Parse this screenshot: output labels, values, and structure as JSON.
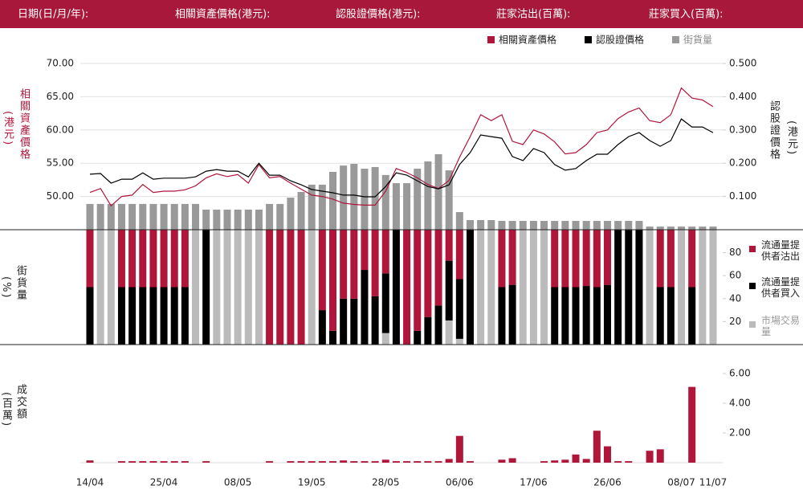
{
  "header": {
    "labels": [
      "日期(日/月/年):",
      "相關資產價格(港元):",
      "認股證價格(港元):",
      "莊家沽出(百萬):",
      "莊家買入(百萬):"
    ]
  },
  "chart_data": [
    {
      "type": "line",
      "ylabel": "相關資產價格",
      "yunit": "(港元)",
      "y2label": "認股證價格",
      "y2unit": "(港元)",
      "ylim": [
        45,
        70
      ],
      "yticks": [
        {
          "value": 50,
          "label": "50.00"
        },
        {
          "value": 55,
          "label": "55.00"
        },
        {
          "value": 60,
          "label": "60.00"
        },
        {
          "value": 65,
          "label": "65.00"
        },
        {
          "value": 70,
          "label": "70.00"
        }
      ],
      "y2lim": [
        0,
        0.5
      ],
      "y2ticks": [
        {
          "value": 0.1,
          "label": "0.100"
        },
        {
          "value": 0.2,
          "label": "0.200"
        },
        {
          "value": 0.3,
          "label": "0.300"
        },
        {
          "value": 0.4,
          "label": "0.400"
        },
        {
          "value": 0.5,
          "label": "0.500"
        }
      ],
      "y3lim": [
        0,
        100
      ],
      "grid": true,
      "legend": "top-right",
      "series": [
        {
          "name": "相關資產價格",
          "color": "#b0153a",
          "axis": "y",
          "values": [
            50.6,
            51.2,
            48.6,
            50.0,
            50.2,
            51.8,
            50.6,
            50.8,
            50.8,
            51.0,
            51.6,
            52.8,
            53.4,
            53.0,
            53.3,
            52.0,
            54.8,
            52.8,
            53.0,
            52.0,
            51.1,
            50.2,
            50.0,
            49.6,
            49.0,
            48.8,
            48.7,
            48.7,
            50.8,
            54.2,
            53.6,
            52.8,
            51.8,
            51.2,
            52.4,
            55.9,
            59.0,
            62.3,
            61.4,
            62.3,
            58.3,
            57.8,
            60.0,
            59.4,
            58.2,
            56.4,
            56.6,
            57.8,
            59.6,
            60.0,
            61.7,
            62.7,
            63.3,
            61.4,
            61.1,
            62.3,
            66.3,
            64.8,
            64.5,
            63.5
          ]
        },
        {
          "name": "認股證價格",
          "color": "#000000",
          "axis": "y2",
          "values": [
            0.167,
            0.169,
            0.14,
            0.152,
            0.152,
            0.171,
            0.152,
            0.155,
            0.155,
            0.155,
            0.159,
            0.176,
            0.181,
            0.176,
            0.176,
            0.159,
            0.2,
            0.164,
            0.164,
            0.147,
            0.135,
            0.121,
            0.116,
            0.111,
            0.104,
            0.104,
            0.099,
            0.099,
            0.13,
            0.171,
            0.164,
            0.147,
            0.13,
            0.123,
            0.135,
            0.196,
            0.232,
            0.285,
            0.28,
            0.275,
            0.22,
            0.208,
            0.244,
            0.232,
            0.196,
            0.179,
            0.184,
            0.208,
            0.227,
            0.227,
            0.256,
            0.28,
            0.292,
            0.268,
            0.251,
            0.268,
            0.333,
            0.309,
            0.309,
            0.292
          ]
        },
        {
          "name": "街貨量",
          "color": "#999999",
          "axis": "y3",
          "type": "bar",
          "values": [
            15.5,
            15.5,
            15.5,
            15.5,
            15.5,
            15.5,
            15.5,
            15.5,
            15.5,
            15.5,
            15.5,
            12.1,
            12.1,
            12.1,
            12.1,
            12.1,
            12.1,
            15.5,
            15.5,
            19.3,
            22.7,
            27.1,
            27.1,
            34.8,
            38.6,
            39.6,
            36.7,
            37.7,
            32.9,
            28.0,
            28.0,
            36.7,
            41.1,
            45.4,
            35.7,
            10.6,
            5.8,
            5.8,
            5.8,
            5.3,
            5.3,
            5.3,
            5.3,
            5.3,
            5.3,
            5.3,
            5.3,
            5.3,
            5.3,
            5.3,
            5.3,
            5.3,
            5.3,
            1.9,
            1.9,
            1.9,
            1.9,
            1.9,
            1.9,
            1.9
          ]
        }
      ]
    },
    {
      "type": "bar",
      "stacked": true,
      "ylabel": "街貨量",
      "yunit": "(%)",
      "ylim": [
        0,
        100
      ],
      "yticks": [
        20,
        40,
        60,
        80
      ],
      "legend": "right",
      "series": [
        {
          "name": "市場交易量",
          "color": "#bbbbbb",
          "values": [
            0,
            100,
            100,
            0,
            0,
            0,
            0,
            0,
            0,
            0,
            100,
            0,
            100,
            100,
            100,
            100,
            100,
            0,
            0,
            0,
            0,
            100,
            0,
            0,
            0,
            0,
            0,
            0,
            10,
            0,
            0,
            0,
            0,
            0,
            21,
            5,
            0,
            100,
            100,
            0,
            0,
            100,
            100,
            100,
            0,
            0,
            0,
            0,
            0,
            0,
            0,
            0,
            0,
            100,
            0,
            0,
            100,
            0,
            100,
            100
          ]
        },
        {
          "name": "流通量提供者買入",
          "color": "#000000",
          "values": [
            50,
            0,
            0,
            50,
            50,
            50,
            50,
            50,
            50,
            50,
            0,
            100,
            0,
            0,
            0,
            0,
            0,
            0,
            0,
            0,
            0,
            0,
            30,
            12,
            40,
            40,
            65,
            42,
            52,
            100,
            0,
            12,
            24,
            34,
            52,
            52,
            100,
            0,
            0,
            50,
            52,
            0,
            0,
            0,
            50,
            50,
            50,
            51,
            50,
            52,
            100,
            100,
            100,
            0,
            50,
            50,
            0,
            50,
            0,
            0
          ]
        },
        {
          "name": "流通量提供者沽出",
          "color": "#b0153a",
          "values": [
            50,
            0,
            0,
            50,
            50,
            50,
            50,
            50,
            50,
            50,
            0,
            0,
            0,
            0,
            0,
            0,
            0,
            100,
            100,
            100,
            100,
            0,
            70,
            88,
            60,
            60,
            35,
            58,
            38,
            0,
            100,
            88,
            76,
            66,
            27,
            43,
            0,
            0,
            0,
            50,
            48,
            0,
            0,
            0,
            50,
            50,
            50,
            49,
            50,
            48,
            0,
            0,
            0,
            0,
            50,
            50,
            0,
            50,
            0,
            0
          ]
        }
      ]
    },
    {
      "type": "bar",
      "ylabel": "成交額",
      "yunit": "(百萬)",
      "ylim": [
        0,
        6
      ],
      "yticks": [
        {
          "value": 2,
          "label": "2.00"
        },
        {
          "value": 4,
          "label": "4.00"
        },
        {
          "value": 6,
          "label": "6.00"
        }
      ],
      "color": "#b0153a",
      "categories": [
        "14/04",
        null,
        null,
        null,
        null,
        null,
        null,
        "25/04",
        null,
        null,
        null,
        null,
        null,
        null,
        "08/05",
        null,
        null,
        null,
        null,
        null,
        null,
        "19/05",
        null,
        null,
        null,
        null,
        null,
        null,
        "28/05",
        null,
        null,
        null,
        null,
        null,
        null,
        "06/06",
        null,
        null,
        null,
        null,
        null,
        null,
        "17/06",
        null,
        null,
        null,
        null,
        null,
        null,
        "26/06",
        null,
        null,
        null,
        null,
        null,
        null,
        "08/07",
        null,
        null,
        "11/07"
      ],
      "values": [
        0.15,
        0,
        0,
        0.1,
        0.1,
        0.1,
        0.1,
        0.1,
        0.1,
        0.1,
        0,
        0.1,
        0,
        0,
        0,
        0,
        0,
        0.1,
        0,
        0.1,
        0.1,
        0.1,
        0.1,
        0.1,
        0.15,
        0.1,
        0.1,
        0.1,
        0.2,
        0.1,
        0.1,
        0.1,
        0.1,
        0.1,
        0.25,
        1.8,
        0.1,
        0,
        0,
        0.2,
        0.3,
        0,
        0,
        0.1,
        0.15,
        0.2,
        0.55,
        0.25,
        2.15,
        1.1,
        0.1,
        0.1,
        0,
        0.8,
        0.9,
        0,
        0,
        5.1,
        0,
        0
      ]
    }
  ]
}
